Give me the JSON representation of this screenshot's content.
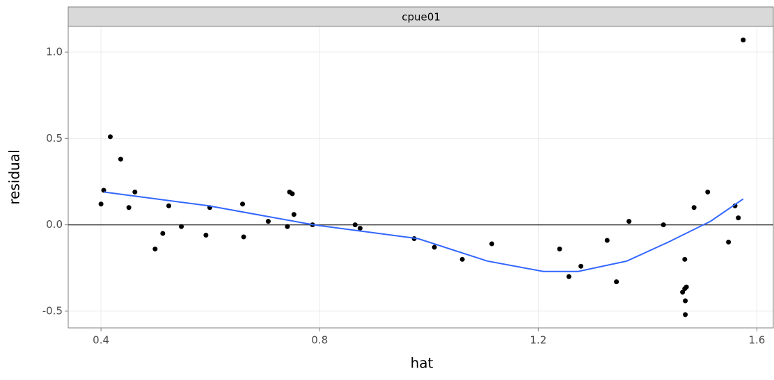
{
  "chart_data": {
    "type": "scatter",
    "facet_label": "cpue01",
    "x_label": "hat",
    "y_label": "residual",
    "x": [
      0.4,
      0.405,
      0.417,
      0.436,
      0.451,
      0.462,
      0.499,
      0.513,
      0.524,
      0.547,
      0.592,
      0.599,
      0.659,
      0.661,
      0.706,
      0.741,
      0.745,
      0.75,
      0.753,
      0.787,
      0.865,
      0.874,
      0.973,
      1.01,
      1.061,
      1.115,
      1.239,
      1.256,
      1.278,
      1.326,
      1.343,
      1.366,
      1.429,
      1.464,
      1.468,
      1.471,
      1.468,
      1.469,
      1.469,
      1.485,
      1.51,
      1.548,
      1.56,
      1.566,
      1.575
    ],
    "values": [
      0.12,
      0.2,
      0.51,
      0.38,
      0.1,
      0.19,
      -0.14,
      -0.05,
      0.11,
      -0.01,
      -0.06,
      0.1,
      0.12,
      -0.07,
      0.02,
      -0.01,
      0.19,
      0.18,
      0.06,
      0.0,
      0.0,
      -0.02,
      -0.08,
      -0.13,
      -0.2,
      -0.11,
      -0.14,
      -0.3,
      -0.24,
      -0.09,
      -0.33,
      0.02,
      -0.0,
      -0.39,
      -0.37,
      -0.36,
      -0.2,
      -0.44,
      -0.52,
      0.1,
      0.19,
      -0.1,
      0.11,
      0.04,
      1.07
    ],
    "color": "#000000",
    "smooth": {
      "color": "#3366ff",
      "x": [
        0.405,
        0.597,
        0.789,
        0.98,
        1.107,
        1.209,
        1.273,
        1.362,
        1.438,
        1.515,
        1.575
      ],
      "values": [
        0.19,
        0.11,
        0.0,
        -0.08,
        -0.21,
        -0.27,
        -0.27,
        -0.21,
        -0.1,
        0.02,
        0.15
      ]
    },
    "hline": 0,
    "xlim": [
      0.34,
      1.63
    ],
    "ylim": [
      -0.597,
      1.149
    ],
    "xticks": [
      0.4,
      0.8,
      1.2,
      1.6
    ],
    "yticks": [
      {
        "value": 1.0,
        "label": "1.0"
      },
      0.5,
      {
        "value": 0.0,
        "label": "0.0"
      },
      -0.5
    ],
    "grid": true
  }
}
